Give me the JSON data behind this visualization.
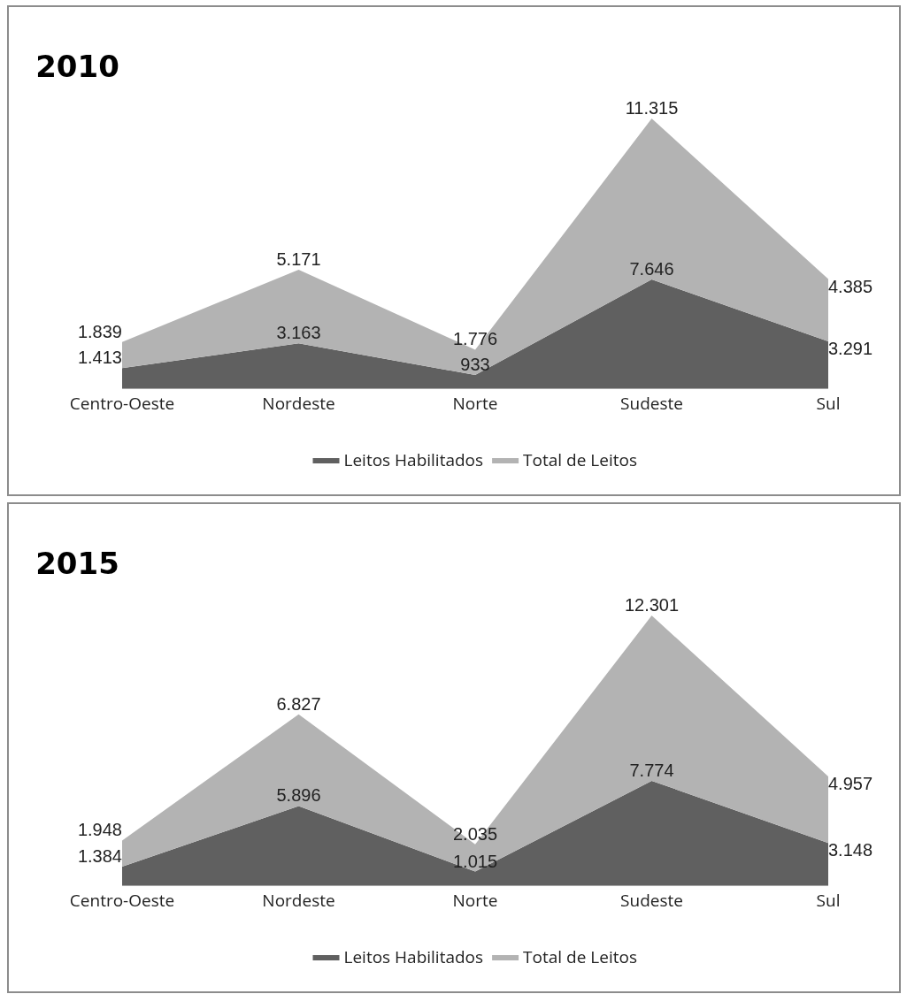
{
  "chart_data": [
    {
      "type": "area",
      "title": "2010",
      "categories": [
        "Centro-Oeste",
        "Nordeste",
        "Norte",
        "Sudeste",
        "Sul"
      ],
      "stacked": true,
      "legend": "bottom",
      "grid": false,
      "series": [
        {
          "name": "Leitos Habilitados",
          "color": "#606060",
          "values": [
            1413,
            3163,
            933,
            7646,
            3291
          ],
          "value_labels": [
            "1.413",
            "3.163",
            "933",
            "7.646",
            "3.291"
          ]
        },
        {
          "name": "Total de Leitos",
          "color": "#b3b3b3",
          "values": [
            1839,
            5171,
            1776,
            11315,
            4385
          ],
          "value_labels": [
            "1.839",
            "5.171",
            "1.776",
            "11.315",
            "4.385"
          ]
        }
      ]
    },
    {
      "type": "area",
      "title": "2015",
      "categories": [
        "Centro-Oeste",
        "Nordeste",
        "Norte",
        "Sudeste",
        "Sul"
      ],
      "stacked": true,
      "legend": "bottom",
      "grid": false,
      "series": [
        {
          "name": "Leitos Habilitados",
          "color": "#606060",
          "values": [
            1384,
            5896,
            1015,
            7774,
            3148
          ],
          "value_labels": [
            "1.384",
            "5.896",
            "1.015",
            "7.774",
            "3.148"
          ]
        },
        {
          "name": "Total de Leitos",
          "color": "#b3b3b3",
          "values": [
            1948,
            6827,
            2035,
            12301,
            4957
          ],
          "value_labels": [
            "1.948",
            "6.827",
            "2.035",
            "12.301",
            "4.957"
          ]
        }
      ]
    }
  ]
}
